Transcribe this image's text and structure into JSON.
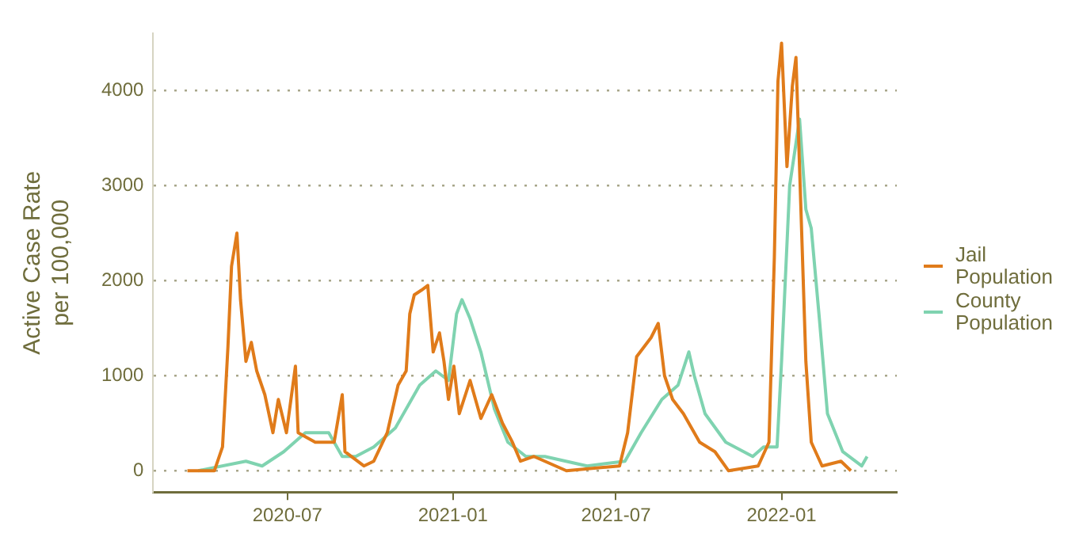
{
  "chart_data": {
    "type": "line",
    "ylabel": "Active Case Rate\nper 100,000",
    "xlim": [
      "2020-02-03",
      "2022-05-09"
    ],
    "xticks": [
      {
        "value": "2020-07-01",
        "label": "2020-07"
      },
      {
        "value": "2021-01-01",
        "label": "2021-01"
      },
      {
        "value": "2021-07-01",
        "label": "2021-07"
      },
      {
        "value": "2022-01-01",
        "label": "2022-01"
      }
    ],
    "ylim": [
      -225,
      4600
    ],
    "yticks": [
      0,
      1000,
      2000,
      3000,
      4000
    ],
    "grid": "y",
    "legend": "right",
    "marker": "none",
    "line_style": "solid",
    "series": [
      {
        "name": "Jail Population",
        "color": "#e07b1a",
        "x": [
          "2020-03-12",
          "2020-04-11",
          "2020-04-20",
          "2020-04-26",
          "2020-04-30",
          "2020-05-06",
          "2020-05-10",
          "2020-05-16",
          "2020-05-22",
          "2020-05-28",
          "2020-06-06",
          "2020-06-15",
          "2020-06-21",
          "2020-06-30",
          "2020-07-10",
          "2020-07-13",
          "2020-08-01",
          "2020-08-22",
          "2020-08-31",
          "2020-09-03",
          "2020-09-24",
          "2020-10-05",
          "2020-10-20",
          "2020-11-01",
          "2020-11-10",
          "2020-11-14",
          "2020-11-19",
          "2020-11-27",
          "2020-12-04",
          "2020-12-10",
          "2020-12-17",
          "2020-12-22",
          "2020-12-27",
          "2021-01-02",
          "2021-01-08",
          "2021-01-20",
          "2021-02-01",
          "2021-02-13",
          "2021-02-25",
          "2021-03-08",
          "2021-03-17",
          "2021-04-01",
          "2021-05-07",
          "2021-07-05",
          "2021-07-14",
          "2021-07-24",
          "2021-08-01",
          "2021-08-09",
          "2021-08-17",
          "2021-08-24",
          "2021-09-02",
          "2021-09-14",
          "2021-10-02",
          "2021-10-19",
          "2021-11-03",
          "2021-12-06",
          "2021-12-18",
          "2021-12-24",
          "2021-12-28",
          "2022-01-01",
          "2022-01-07",
          "2022-01-13",
          "2022-01-17",
          "2022-01-22",
          "2022-01-28",
          "2022-02-03",
          "2022-02-15",
          "2022-03-08",
          "2022-03-19"
        ],
        "values": [
          0,
          0,
          250,
          1300,
          2150,
          2500,
          1800,
          1150,
          1350,
          1050,
          800,
          400,
          750,
          400,
          1100,
          400,
          300,
          300,
          800,
          200,
          50,
          100,
          400,
          900,
          1050,
          1650,
          1850,
          1900,
          1950,
          1250,
          1450,
          1150,
          750,
          1100,
          600,
          950,
          550,
          800,
          500,
          300,
          100,
          150,
          0,
          50,
          400,
          1200,
          1300,
          1400,
          1550,
          1000,
          750,
          600,
          300,
          200,
          0,
          50,
          300,
          2250,
          4100,
          4500,
          3200,
          4050,
          4350,
          2900,
          1150,
          300,
          50,
          100,
          0
        ]
      },
      {
        "name": "County Population",
        "color": "#7fd3b0",
        "x": [
          "2020-03-24",
          "2020-05-16",
          "2020-06-03",
          "2020-06-27",
          "2020-07-21",
          "2020-08-16",
          "2020-08-31",
          "2020-09-15",
          "2020-10-05",
          "2020-10-29",
          "2020-11-25",
          "2020-12-13",
          "2020-12-27",
          "2021-01-05",
          "2021-01-11",
          "2021-01-20",
          "2021-02-01",
          "2021-02-16",
          "2021-03-03",
          "2021-03-23",
          "2021-04-13",
          "2021-05-30",
          "2021-07-11",
          "2021-07-29",
          "2021-08-21",
          "2021-09-08",
          "2021-09-20",
          "2021-09-26",
          "2021-10-08",
          "2021-10-31",
          "2021-11-30",
          "2021-12-12",
          "2021-12-27",
          "2022-01-01",
          "2022-01-10",
          "2022-01-21",
          "2022-01-28",
          "2022-02-03",
          "2022-02-12",
          "2022-02-21",
          "2022-03-10",
          "2022-03-31",
          "2022-04-06"
        ],
        "values": [
          0,
          100,
          50,
          200,
          400,
          400,
          150,
          150,
          250,
          450,
          900,
          1050,
          950,
          1650,
          1800,
          1600,
          1250,
          650,
          300,
          150,
          150,
          50,
          100,
          400,
          750,
          900,
          1250,
          1000,
          600,
          300,
          150,
          250,
          250,
          1150,
          3000,
          3700,
          2750,
          2550,
          1600,
          600,
          200,
          50,
          150
        ]
      }
    ]
  }
}
